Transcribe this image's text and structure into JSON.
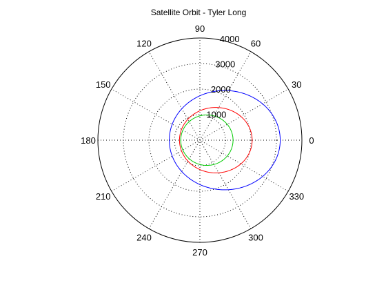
{
  "chart_data": {
    "type": "polar-line",
    "title": "Satellite Orbit - Tyler Long",
    "rlim": [
      0,
      4000
    ],
    "radial_ticks": [
      1000,
      2000,
      3000,
      4000
    ],
    "radial_tick_labels": [
      "1000",
      "2000",
      "3000",
      "4000"
    ],
    "angle_ticks_deg": [
      0,
      30,
      60,
      90,
      120,
      150,
      180,
      210,
      240,
      270,
      300,
      330
    ],
    "angle_tick_labels": [
      "0",
      "30",
      "60",
      "90",
      "120",
      "150",
      "180",
      "210",
      "240",
      "270",
      "300",
      "330"
    ],
    "grid": true,
    "series": [
      {
        "color": "#0000ff",
        "orbit": {
          "periapsis": 3150,
          "apoapsis": 1200,
          "periapsis_angle_deg": 0
        }
      },
      {
        "color": "#ff0000",
        "orbit": {
          "periapsis": 2050,
          "apoapsis": 800,
          "periapsis_angle_deg": 0
        }
      },
      {
        "color": "#00cc00",
        "orbit": {
          "periapsis": 1300,
          "apoapsis": 750,
          "periapsis_angle_deg": 0
        }
      }
    ]
  }
}
